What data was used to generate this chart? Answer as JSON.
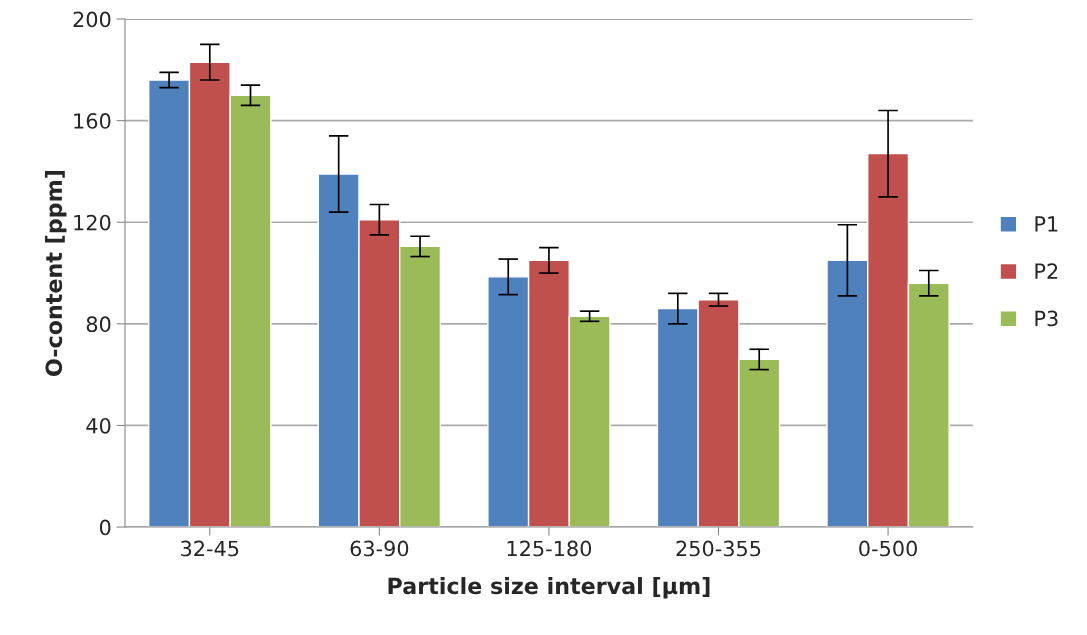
{
  "chart_data": {
    "type": "bar",
    "xlabel": "Particle size interval [µm]",
    "ylabel": "O-content [ppm]",
    "categories": [
      "32-45",
      "63-90",
      "125-180",
      "250-355",
      "0-500"
    ],
    "series": [
      {
        "name": "P1",
        "color": "#4f81bd",
        "values": [
          176,
          139,
          98.5,
          86,
          105
        ],
        "errors": [
          3,
          15,
          7,
          6,
          14
        ]
      },
      {
        "name": "P2",
        "color": "#c0504d",
        "values": [
          183,
          121,
          105,
          89.5,
          147
        ],
        "errors": [
          7,
          6,
          5,
          2.5,
          17
        ]
      },
      {
        "name": "P3",
        "color": "#9bbb59",
        "values": [
          170,
          110.5,
          83,
          66,
          96
        ],
        "errors": [
          4,
          4,
          2,
          4,
          5
        ]
      }
    ],
    "ylim": [
      0,
      200
    ],
    "yticks": [
      0,
      40,
      80,
      120,
      160,
      200
    ],
    "grid": "y",
    "legend": "right"
  }
}
